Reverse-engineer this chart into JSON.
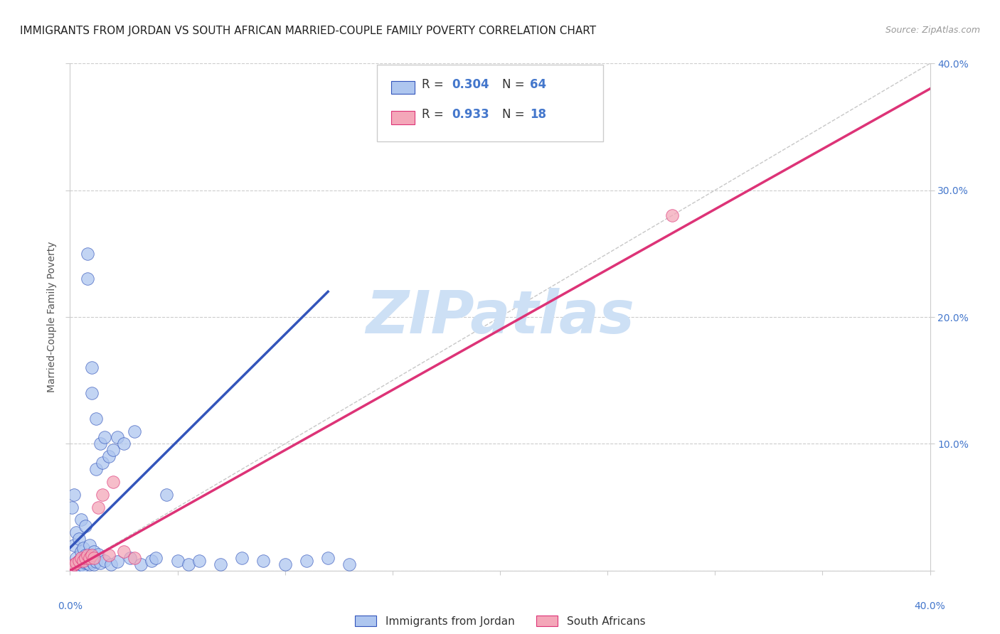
{
  "title": "IMMIGRANTS FROM JORDAN VS SOUTH AFRICAN MARRIED-COUPLE FAMILY POVERTY CORRELATION CHART",
  "source": "Source: ZipAtlas.com",
  "ylabel": "Married-Couple Family Poverty",
  "xlim": [
    0.0,
    0.4
  ],
  "ylim": [
    0.0,
    0.4
  ],
  "xticks": [
    0.0,
    0.05,
    0.1,
    0.15,
    0.2,
    0.25,
    0.3,
    0.35,
    0.4
  ],
  "yticks": [
    0.0,
    0.1,
    0.2,
    0.3,
    0.4
  ],
  "right_ytick_labels": [
    "",
    "10.0%",
    "20.0%",
    "30.0%",
    "40.0%"
  ],
  "blue_scatter_x": [
    0.001,
    0.002,
    0.002,
    0.003,
    0.003,
    0.003,
    0.004,
    0.004,
    0.005,
    0.005,
    0.005,
    0.006,
    0.006,
    0.007,
    0.007,
    0.008,
    0.008,
    0.009,
    0.009,
    0.01,
    0.01,
    0.011,
    0.012,
    0.012,
    0.013,
    0.014,
    0.015,
    0.016,
    0.018,
    0.02,
    0.022,
    0.025,
    0.028,
    0.03,
    0.033,
    0.038,
    0.04,
    0.045,
    0.05,
    0.055,
    0.06,
    0.07,
    0.08,
    0.09,
    0.1,
    0.11,
    0.12,
    0.13,
    0.001,
    0.002,
    0.003,
    0.004,
    0.005,
    0.006,
    0.007,
    0.008,
    0.009,
    0.01,
    0.011,
    0.012,
    0.014,
    0.016,
    0.019,
    0.022
  ],
  "blue_scatter_y": [
    0.05,
    0.06,
    0.02,
    0.03,
    0.005,
    0.01,
    0.025,
    0.008,
    0.04,
    0.015,
    0.005,
    0.018,
    0.008,
    0.035,
    0.012,
    0.25,
    0.23,
    0.02,
    0.01,
    0.16,
    0.14,
    0.015,
    0.12,
    0.08,
    0.013,
    0.1,
    0.085,
    0.105,
    0.09,
    0.095,
    0.105,
    0.1,
    0.01,
    0.11,
    0.005,
    0.008,
    0.01,
    0.06,
    0.008,
    0.005,
    0.008,
    0.005,
    0.01,
    0.008,
    0.005,
    0.008,
    0.01,
    0.005,
    0.003,
    0.003,
    0.004,
    0.004,
    0.005,
    0.004,
    0.006,
    0.006,
    0.005,
    0.007,
    0.005,
    0.007,
    0.006,
    0.008,
    0.005,
    0.007
  ],
  "pink_scatter_x": [
    0.001,
    0.002,
    0.003,
    0.004,
    0.005,
    0.006,
    0.007,
    0.008,
    0.009,
    0.01,
    0.011,
    0.013,
    0.015,
    0.018,
    0.02,
    0.025,
    0.03,
    0.28
  ],
  "pink_scatter_y": [
    0.003,
    0.005,
    0.006,
    0.008,
    0.01,
    0.008,
    0.01,
    0.012,
    0.01,
    0.012,
    0.01,
    0.05,
    0.06,
    0.012,
    0.07,
    0.015,
    0.01,
    0.28
  ],
  "blue_line_x": [
    0.0,
    0.12
  ],
  "blue_line_y": [
    0.018,
    0.22
  ],
  "pink_line_x": [
    0.0,
    0.4
  ],
  "pink_line_y": [
    0.0,
    0.38
  ],
  "diag_line_x": [
    0.0,
    0.4
  ],
  "diag_line_y": [
    0.0,
    0.4
  ],
  "blue_color": "#aec6ef",
  "blue_line_color": "#3355bb",
  "pink_color": "#f4a7b9",
  "pink_line_color": "#dd3377",
  "diag_line_color": "#b0b0b0",
  "watermark": "ZIPatlas",
  "watermark_color": "#cde0f5",
  "legend_R_blue": "0.304",
  "legend_N_blue": "64",
  "legend_R_pink": "0.933",
  "legend_N_pink": "18",
  "legend_label_blue": "Immigrants from Jordan",
  "legend_label_pink": "South Africans",
  "title_fontsize": 11,
  "axis_label_fontsize": 10,
  "tick_fontsize": 10,
  "background_color": "#ffffff",
  "grid_color": "#cccccc"
}
